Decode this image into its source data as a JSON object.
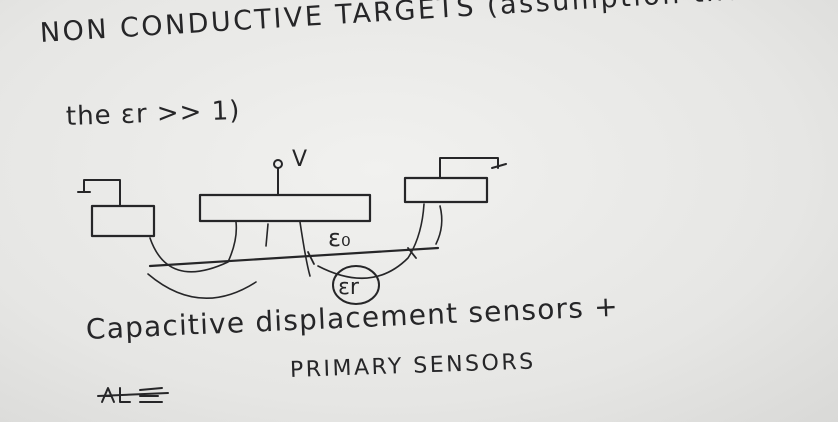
{
  "text": {
    "line1": "NON CONDUCTIVE TARGETS (assumption that",
    "line2": "the εr >> 1)",
    "line3": "Capacitive displacement sensors +",
    "line4": "PRIMARY SENSORS"
  },
  "labels": {
    "voltage": "V",
    "eps0": "ε₀",
    "epsr": "εr"
  },
  "colors": {
    "ink": "#262628",
    "board": "#e9e9e7"
  }
}
